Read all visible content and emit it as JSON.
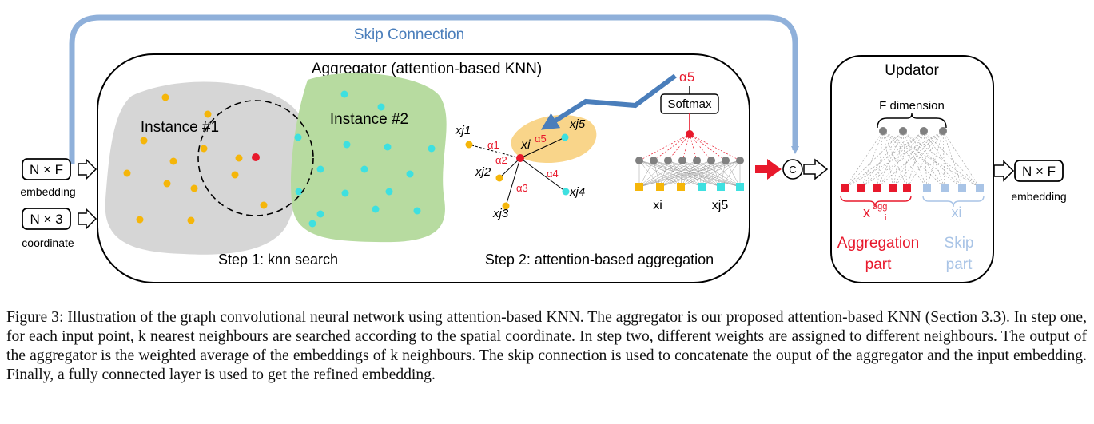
{
  "skip_connection_label": "Skip Connection",
  "aggregator_title": "Aggregator (attention-based KNN)",
  "updator_title": "Updator",
  "inputs": {
    "embedding_dim": "N × F",
    "embedding_label": "embedding",
    "coordinate_dim": "N × 3",
    "coordinate_label": "coordinate"
  },
  "output": {
    "dim": "N × F",
    "label": "embedding"
  },
  "step1": {
    "instance1": "Instance #1",
    "instance2": "Instance #2",
    "caption": "Step 1: knn search"
  },
  "step2": {
    "caption": "Step 2: attention-based aggregation",
    "softmax": "Softmax",
    "alpha5_top": "α5",
    "neighbors": [
      "xj1",
      "xj2",
      "xj3",
      "xj4",
      "xj5"
    ],
    "center": "xi",
    "alphas": [
      "α1",
      "α2",
      "α3",
      "α4",
      "α5"
    ],
    "mlp_left": "xi",
    "mlp_right": "xj5"
  },
  "concat_symbol": "C",
  "updator": {
    "f_dimension": "F dimension",
    "xagg_base": "x",
    "xagg_sup": "agg",
    "xagg_sub": "i",
    "xi": "xi",
    "aggregation_part": [
      "Aggregation",
      "part"
    ],
    "skip_part": [
      "Skip",
      "part"
    ]
  },
  "colors": {
    "orange_point": "#f5b60a",
    "cyan_point": "#3ee0e0",
    "gray_instance": "#d6d6d6",
    "green_instance": "#b7dba0",
    "red": "#e8192c",
    "light_blue": "#a9c4e6",
    "skip_arrow": "#8fb0da",
    "attention_arrow": "#4a7ebb",
    "highlight": "#f9d58a"
  },
  "caption": "Figure 3: Illustration of the graph convolutional neural network using attention-based KNN. The aggregator is our proposed attention-based KNN (Section 3.3). In step one, for each input point, k nearest neighbours are searched according to the spatial coordinate. In step two, different weights are assigned to different neighbours. The output of the aggregator is the weighted average of the embeddings of k neighbours. The skip connection is used to concatenate the ouput of the aggregator and the input embedding. Finally, a fully connected layer is used to get the refined embedding."
}
